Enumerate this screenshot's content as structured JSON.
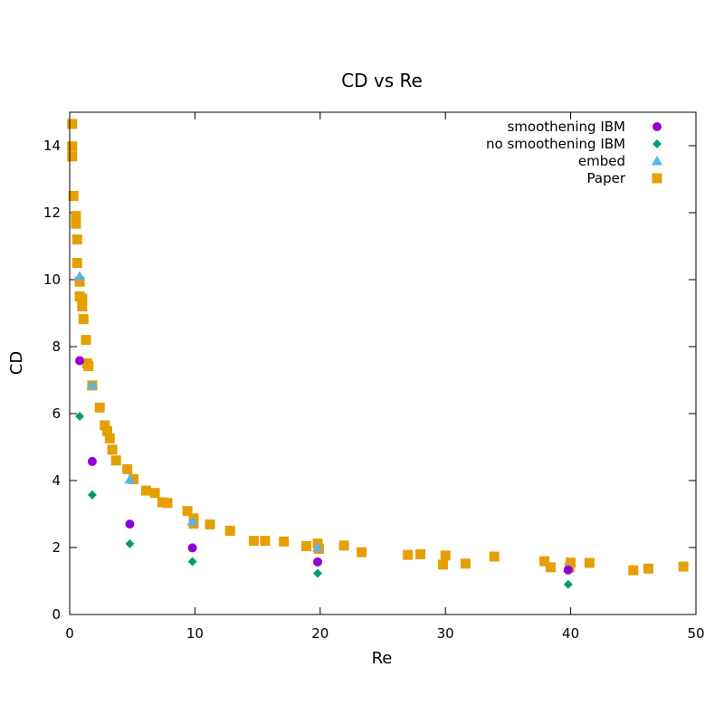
{
  "chart_data": {
    "type": "scatter",
    "title": "CD vs Re",
    "xlabel": "Re",
    "ylabel": "CD",
    "xlim": [
      0,
      50
    ],
    "ylim": [
      0,
      15
    ],
    "xticks": [
      "0",
      "10",
      "20",
      "30",
      "40",
      "50"
    ],
    "yticks": [
      "0",
      "2",
      "4",
      "6",
      "8",
      "10",
      "12",
      "14"
    ],
    "grid": false,
    "legend_position": "top-right",
    "series": [
      {
        "name": "smoothening IBM",
        "marker": "circle",
        "color": "#9400d3",
        "x": [
          0.8,
          1.8,
          4.8,
          9.8,
          19.8,
          39.8
        ],
        "y": [
          7.58,
          4.57,
          2.7,
          1.99,
          1.57,
          1.33
        ]
      },
      {
        "name": "no smoothening IBM",
        "marker": "diamond",
        "color": "#009e73",
        "x": [
          0.8,
          1.8,
          4.8,
          9.8,
          19.8,
          39.8
        ],
        "y": [
          5.92,
          3.57,
          2.11,
          1.58,
          1.23,
          0.9
        ]
      },
      {
        "name": "embed",
        "marker": "triangle",
        "color": "#56b4e9",
        "x": [
          0.8,
          1.8,
          4.8,
          9.8,
          19.8,
          39.8
        ],
        "y": [
          10.1,
          6.85,
          4.03,
          2.78,
          2.0,
          1.38
        ]
      },
      {
        "name": "Paper",
        "marker": "square",
        "color": "#e69f00",
        "x": [
          0.2,
          0.2,
          0.2,
          0.3,
          0.5,
          0.5,
          0.6,
          0.6,
          0.8,
          0.8,
          1.0,
          1.0,
          1.1,
          1.3,
          1.4,
          1.5,
          1.8,
          1.8,
          2.4,
          2.8,
          3.0,
          3.2,
          3.4,
          3.7,
          4.6,
          5.1,
          6.1,
          6.8,
          7.4,
          7.8,
          9.4,
          9.9,
          9.9,
          11.2,
          12.8,
          14.7,
          15.6,
          17.1,
          18.9,
          19.8,
          19.9,
          21.9,
          23.3,
          27.0,
          28.0,
          29.8,
          30.0,
          31.6,
          33.9,
          37.9,
          38.4,
          39.9,
          40.0,
          41.5,
          45.0,
          46.2,
          49.0
        ],
        "y": [
          14.65,
          13.98,
          13.68,
          12.5,
          11.9,
          11.67,
          10.5,
          11.2,
          9.94,
          9.5,
          9.43,
          9.2,
          8.82,
          8.2,
          7.5,
          7.42,
          6.84,
          6.84,
          6.18,
          5.65,
          5.47,
          5.26,
          4.92,
          4.6,
          4.34,
          4.04,
          3.7,
          3.63,
          3.35,
          3.33,
          3.09,
          2.87,
          2.71,
          2.69,
          2.5,
          2.2,
          2.2,
          2.18,
          2.04,
          2.12,
          1.96,
          2.06,
          1.86,
          1.78,
          1.8,
          1.49,
          1.76,
          1.52,
          1.73,
          1.59,
          1.41,
          1.4,
          1.55,
          1.54,
          1.32,
          1.37,
          1.43
        ]
      }
    ]
  }
}
